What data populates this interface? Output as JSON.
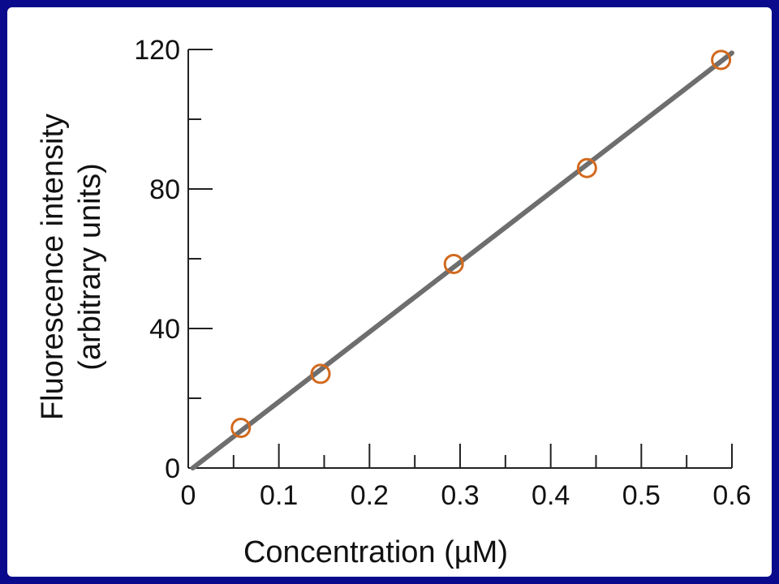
{
  "chart_data": {
    "type": "scatter",
    "xlabel": "Concentration (µM)",
    "ylabel_line1": "Fluorescence intensity",
    "ylabel_line2": "(arbitrary units)",
    "xlim": [
      0,
      0.6
    ],
    "ylim": [
      0,
      120
    ],
    "x_ticks": [
      0,
      0.1,
      0.2,
      0.3,
      0.4,
      0.5,
      0.6
    ],
    "x_tick_labels": [
      "0",
      "0.1",
      "0.2",
      "0.3",
      "0.4",
      "0.5",
      "0.6"
    ],
    "x_minor_ticks": [
      0.05,
      0.15,
      0.25,
      0.35,
      0.45,
      0.55
    ],
    "y_ticks": [
      0,
      40,
      80,
      120
    ],
    "y_tick_labels": [
      "0",
      "40",
      "80",
      "120"
    ],
    "y_minor_ticks": [
      20,
      60,
      100
    ],
    "points": [
      {
        "x": 0.058,
        "y": 11.5
      },
      {
        "x": 0.146,
        "y": 27
      },
      {
        "x": 0.293,
        "y": 58.5
      },
      {
        "x": 0.44,
        "y": 86
      },
      {
        "x": 0.588,
        "y": 117
      }
    ],
    "fit_line": {
      "x0": 0.005,
      "y0": 0,
      "x1": 0.6,
      "y1": 119
    },
    "grid": false,
    "legend": "none",
    "colors": {
      "background": "#0a0a8c",
      "panel": "#ffffff",
      "marker": "#d2691e",
      "line": "#6e6e6e",
      "axis": "#222222"
    }
  }
}
